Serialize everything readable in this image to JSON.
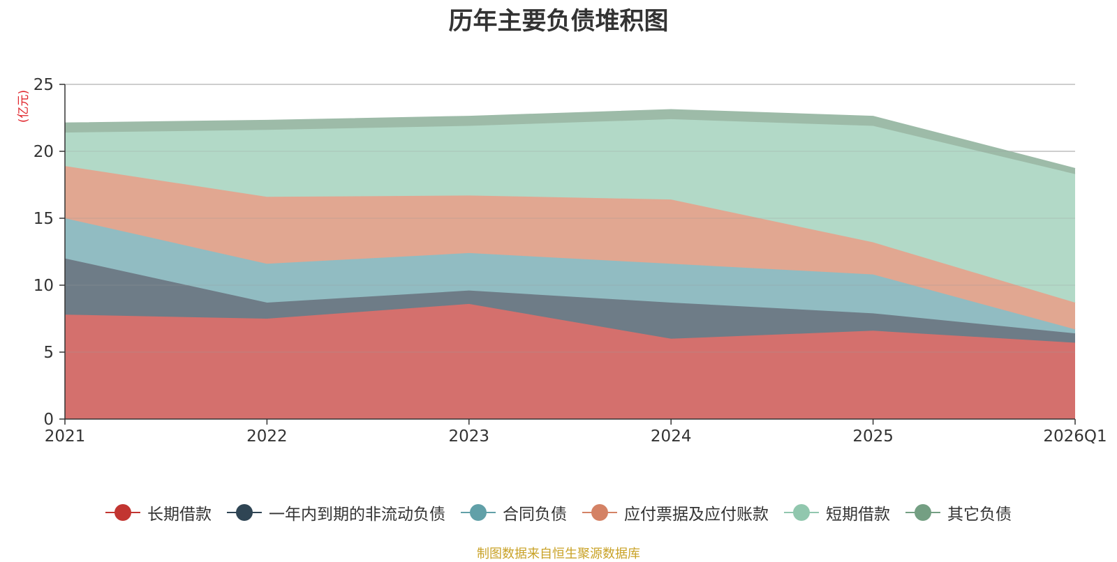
{
  "chart_data": {
    "type": "area",
    "stacked": true,
    "title": "历年主要负债堆积图",
    "ylabel": "(亿元)",
    "ylim": [
      0,
      25
    ],
    "yticks": [
      0,
      5,
      10,
      15,
      20,
      25
    ],
    "grid": true,
    "categories": [
      "2021",
      "2022",
      "2023",
      "2024",
      "2025",
      "2026Q1"
    ],
    "series": [
      {
        "name": "长期借款",
        "color": "#c23531",
        "fill": "#d4706d",
        "values": [
          7.8,
          7.5,
          8.6,
          6.0,
          6.6,
          5.7
        ]
      },
      {
        "name": "一年内到期的非流动负债",
        "color": "#2f4554",
        "fill": "#6e7c87",
        "values": [
          4.2,
          1.2,
          1.0,
          2.7,
          1.3,
          0.7
        ]
      },
      {
        "name": "合同负债",
        "color": "#61a0a8",
        "fill": "#91bcc2",
        "values": [
          3.0,
          2.9,
          2.8,
          2.9,
          2.9,
          0.3
        ]
      },
      {
        "name": "应付票据及应付账款",
        "color": "#d48265",
        "fill": "#e1a791",
        "values": [
          3.9,
          5.0,
          4.3,
          4.8,
          2.4,
          2.0
        ]
      },
      {
        "name": "短期借款",
        "color": "#91c7ae",
        "fill": "#b2d9c7",
        "values": [
          2.5,
          5.0,
          5.2,
          6.0,
          8.7,
          9.6
        ]
      },
      {
        "name": "其它负债",
        "color": "#749f83",
        "fill": "#9dbba8",
        "values": [
          0.7,
          0.7,
          0.7,
          0.7,
          0.7,
          0.4
        ]
      }
    ],
    "legend_position": "bottom-center"
  },
  "source_note": "制图数据来自恒生聚源数据库"
}
